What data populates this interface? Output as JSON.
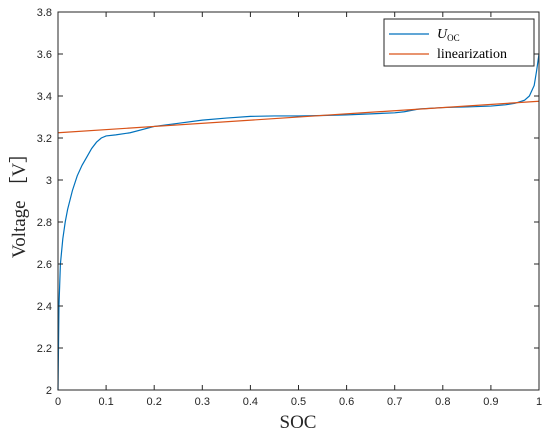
{
  "chart_data": {
    "type": "line",
    "xlabel": "SOC",
    "ylabel": "Voltage ［V］",
    "xlim": [
      0,
      1
    ],
    "ylim": [
      2,
      3.8
    ],
    "xticks": [
      0,
      0.1,
      0.2,
      0.3,
      0.4,
      0.5,
      0.6,
      0.7,
      0.8,
      0.9,
      1
    ],
    "xtick_labels": [
      "0",
      "0.1",
      "0.2",
      "0.3",
      "0.4",
      "0.5",
      "0.6",
      "0.7",
      "0.8",
      "0.9",
      "1"
    ],
    "yticks": [
      2,
      2.2,
      2.4,
      2.6,
      2.8,
      3,
      3.2,
      3.4,
      3.6,
      3.8
    ],
    "ytick_labels": [
      "2",
      "2.2",
      "2.4",
      "2.6",
      "2.8",
      "3",
      "3.2",
      "3.4",
      "3.6",
      "3.8"
    ],
    "grid": false,
    "legend_position": "top-right",
    "legend": [
      {
        "label_main": "U",
        "label_sub": "OC"
      },
      {
        "label_main": "linearization"
      }
    ],
    "series": [
      {
        "name": "U_OC",
        "color": "#0072BD",
        "x": [
          0,
          0.002,
          0.005,
          0.01,
          0.015,
          0.02,
          0.03,
          0.04,
          0.05,
          0.06,
          0.07,
          0.08,
          0.09,
          0.1,
          0.12,
          0.15,
          0.2,
          0.25,
          0.3,
          0.35,
          0.4,
          0.45,
          0.5,
          0.55,
          0.6,
          0.65,
          0.7,
          0.72,
          0.75,
          0.8,
          0.85,
          0.9,
          0.93,
          0.95,
          0.97,
          0.98,
          0.99,
          0.995,
          1.0
        ],
        "values": [
          2.0,
          2.4,
          2.6,
          2.72,
          2.8,
          2.86,
          2.95,
          3.02,
          3.07,
          3.11,
          3.15,
          3.18,
          3.2,
          3.21,
          3.215,
          3.225,
          3.255,
          3.27,
          3.285,
          3.295,
          3.303,
          3.305,
          3.305,
          3.307,
          3.31,
          3.315,
          3.32,
          3.325,
          3.338,
          3.345,
          3.348,
          3.352,
          3.358,
          3.365,
          3.38,
          3.4,
          3.45,
          3.52,
          3.6
        ]
      },
      {
        "name": "linearization",
        "color": "#D95319",
        "x": [
          0,
          1
        ],
        "values": [
          3.225,
          3.375
        ]
      }
    ]
  }
}
